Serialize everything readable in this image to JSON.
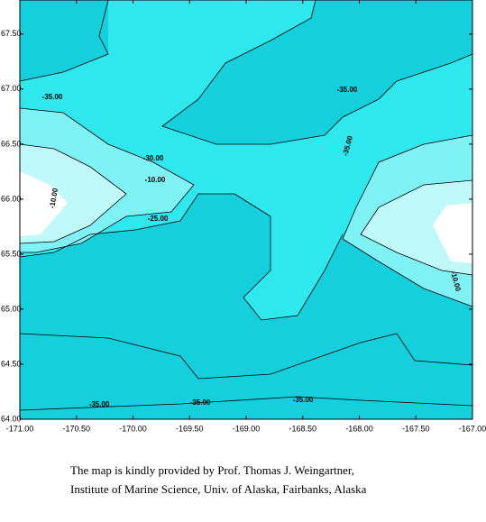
{
  "map": {
    "xlim": [
      -171,
      -167
    ],
    "ylim": [
      64,
      67.81
    ],
    "xticks": [
      {
        "value": -171,
        "label": "-171.00"
      },
      {
        "value": -170.5,
        "label": "-170.50"
      },
      {
        "value": -170,
        "label": "-170.00"
      },
      {
        "value": -169.5,
        "label": "-169.50"
      },
      {
        "value": -169,
        "label": "-169.00"
      },
      {
        "value": -168.5,
        "label": "-168.50"
      },
      {
        "value": -168,
        "label": "-168.00"
      },
      {
        "value": -167.5,
        "label": "-167.50"
      },
      {
        "value": -167,
        "label": "-167.00"
      }
    ],
    "yticks": [
      {
        "value": 64,
        "label": "64.00"
      },
      {
        "value": 64.5,
        "label": "64.50"
      },
      {
        "value": 65,
        "label": "65.00"
      },
      {
        "value": 65.5,
        "label": "65.50"
      },
      {
        "value": 66,
        "label": "66.00"
      },
      {
        "value": 66.5,
        "label": "66.50"
      },
      {
        "value": 67,
        "label": "67.00"
      },
      {
        "value": 67.5,
        "label": "67.50"
      }
    ],
    "contour_labels": [
      "-35.00",
      "-30.00",
      "-10.00",
      "-10.00",
      "-25.00",
      "-35.00",
      "-35.00",
      "-10.00",
      "-35.00",
      "-35.00",
      "-35.00"
    ],
    "caption": [
      "The map is kindly provided by Prof. Thomas J. Weingartner,",
      "Institute of Marine Science, Univ. of Alaska, Fairbanks, Alaska"
    ]
  }
}
